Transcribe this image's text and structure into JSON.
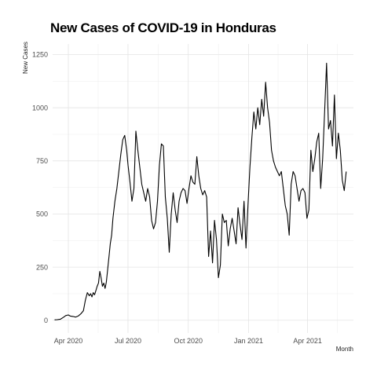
{
  "chart_data": {
    "type": "line",
    "title": "New Cases of COVID-19 in Honduras",
    "xlabel": "Month",
    "ylabel": "New Cases",
    "x_tick_labels": [
      "Apr 2020",
      "Jul 2020",
      "Oct 2020",
      "Jan 2021",
      "Apr 2021"
    ],
    "x_tick_dates": [
      "2020-04-01",
      "2020-07-01",
      "2020-10-01",
      "2021-01-01",
      "2021-04-01"
    ],
    "y_ticks": [
      0,
      250,
      500,
      750,
      1000,
      1250
    ],
    "xlim": [
      "2020-03-08",
      "2021-06-10"
    ],
    "ylim": [
      -60,
      1300
    ],
    "grid": true,
    "legend": "none",
    "line_color": "#000000",
    "series": [
      {
        "x": [
          "2020-03-11",
          "2020-03-15",
          "2020-03-20",
          "2020-03-25",
          "2020-03-28",
          "2020-04-01",
          "2020-04-04",
          "2020-04-08",
          "2020-04-12",
          "2020-04-16",
          "2020-04-20",
          "2020-04-24",
          "2020-04-27",
          "2020-04-30",
          "2020-05-03",
          "2020-05-05",
          "2020-05-07",
          "2020-05-09",
          "2020-05-11",
          "2020-05-13",
          "2020-05-15",
          "2020-05-17",
          "2020-05-19",
          "2020-05-21",
          "2020-05-23",
          "2020-05-25",
          "2020-05-27",
          "2020-05-29",
          "2020-05-31",
          "2020-06-02",
          "2020-06-04",
          "2020-06-06",
          "2020-06-08",
          "2020-06-11",
          "2020-06-14",
          "2020-06-17",
          "2020-06-20",
          "2020-06-23",
          "2020-06-26",
          "2020-06-29",
          "2020-07-01",
          "2020-07-04",
          "2020-07-07",
          "2020-07-10",
          "2020-07-13",
          "2020-07-16",
          "2020-07-19",
          "2020-07-22",
          "2020-07-25",
          "2020-07-28",
          "2020-07-31",
          "2020-08-03",
          "2020-08-06",
          "2020-08-09",
          "2020-08-12",
          "2020-08-15",
          "2020-08-18",
          "2020-08-21",
          "2020-08-24",
          "2020-08-27",
          "2020-08-30",
          "2020-09-02",
          "2020-09-05",
          "2020-09-08",
          "2020-09-11",
          "2020-09-14",
          "2020-09-17",
          "2020-09-20",
          "2020-09-23",
          "2020-09-26",
          "2020-09-29",
          "2020-10-02",
          "2020-10-05",
          "2020-10-08",
          "2020-10-11",
          "2020-10-14",
          "2020-10-17",
          "2020-10-20",
          "2020-10-23",
          "2020-10-26",
          "2020-10-29",
          "2020-11-01",
          "2020-11-04",
          "2020-11-07",
          "2020-11-10",
          "2020-11-13",
          "2020-11-16",
          "2020-11-19",
          "2020-11-22",
          "2020-11-25",
          "2020-11-28",
          "2020-12-01",
          "2020-12-04",
          "2020-12-07",
          "2020-12-10",
          "2020-12-13",
          "2020-12-16",
          "2020-12-19",
          "2020-12-22",
          "2020-12-25",
          "2020-12-28",
          "2020-12-31",
          "2021-01-03",
          "2021-01-06",
          "2021-01-09",
          "2021-01-12",
          "2021-01-15",
          "2021-01-18",
          "2021-01-21",
          "2021-01-24",
          "2021-01-27",
          "2021-01-30",
          "2021-02-02",
          "2021-02-05",
          "2021-02-08",
          "2021-02-11",
          "2021-02-14",
          "2021-02-17",
          "2021-02-20",
          "2021-02-23",
          "2021-02-26",
          "2021-03-01",
          "2021-03-04",
          "2021-03-07",
          "2021-03-10",
          "2021-03-13",
          "2021-03-16",
          "2021-03-19",
          "2021-03-22",
          "2021-03-25",
          "2021-03-28",
          "2021-03-31",
          "2021-04-03",
          "2021-04-06",
          "2021-04-09",
          "2021-04-12",
          "2021-04-15",
          "2021-04-18",
          "2021-04-21",
          "2021-04-24",
          "2021-04-27",
          "2021-04-30",
          "2021-05-03",
          "2021-05-06",
          "2021-05-09",
          "2021-05-12",
          "2021-05-15",
          "2021-05-18",
          "2021-05-21",
          "2021-05-24",
          "2021-05-27",
          "2021-05-30"
        ],
        "y": [
          2,
          3,
          5,
          15,
          22,
          25,
          20,
          18,
          15,
          20,
          30,
          45,
          95,
          130,
          115,
          125,
          110,
          130,
          120,
          140,
          160,
          175,
          230,
          200,
          160,
          175,
          150,
          180,
          240,
          300,
          360,
          400,
          480,
          560,
          620,
          700,
          780,
          850,
          870,
          800,
          730,
          650,
          560,
          620,
          890,
          800,
          720,
          640,
          600,
          560,
          620,
          580,
          470,
          430,
          460,
          560,
          730,
          830,
          820,
          580,
          480,
          320,
          500,
          600,
          520,
          460,
          560,
          600,
          620,
          610,
          550,
          620,
          680,
          650,
          640,
          770,
          680,
          620,
          590,
          610,
          580,
          300,
          420,
          270,
          470,
          380,
          200,
          260,
          500,
          460,
          470,
          350,
          430,
          480,
          420,
          360,
          530,
          450,
          380,
          560,
          340,
          540,
          720,
          860,
          980,
          900,
          1000,
          920,
          1040,
          960,
          1120,
          1000,
          930,
          800,
          750,
          720,
          700,
          680,
          700,
          620,
          540,
          500,
          400,
          640,
          700,
          680,
          620,
          560,
          610,
          620,
          600,
          480,
          520,
          800,
          700,
          760,
          840,
          880,
          620,
          760,
          980,
          1210,
          900,
          940,
          820,
          1060,
          760,
          880,
          800,
          660,
          610,
          700
        ]
      }
    ]
  }
}
